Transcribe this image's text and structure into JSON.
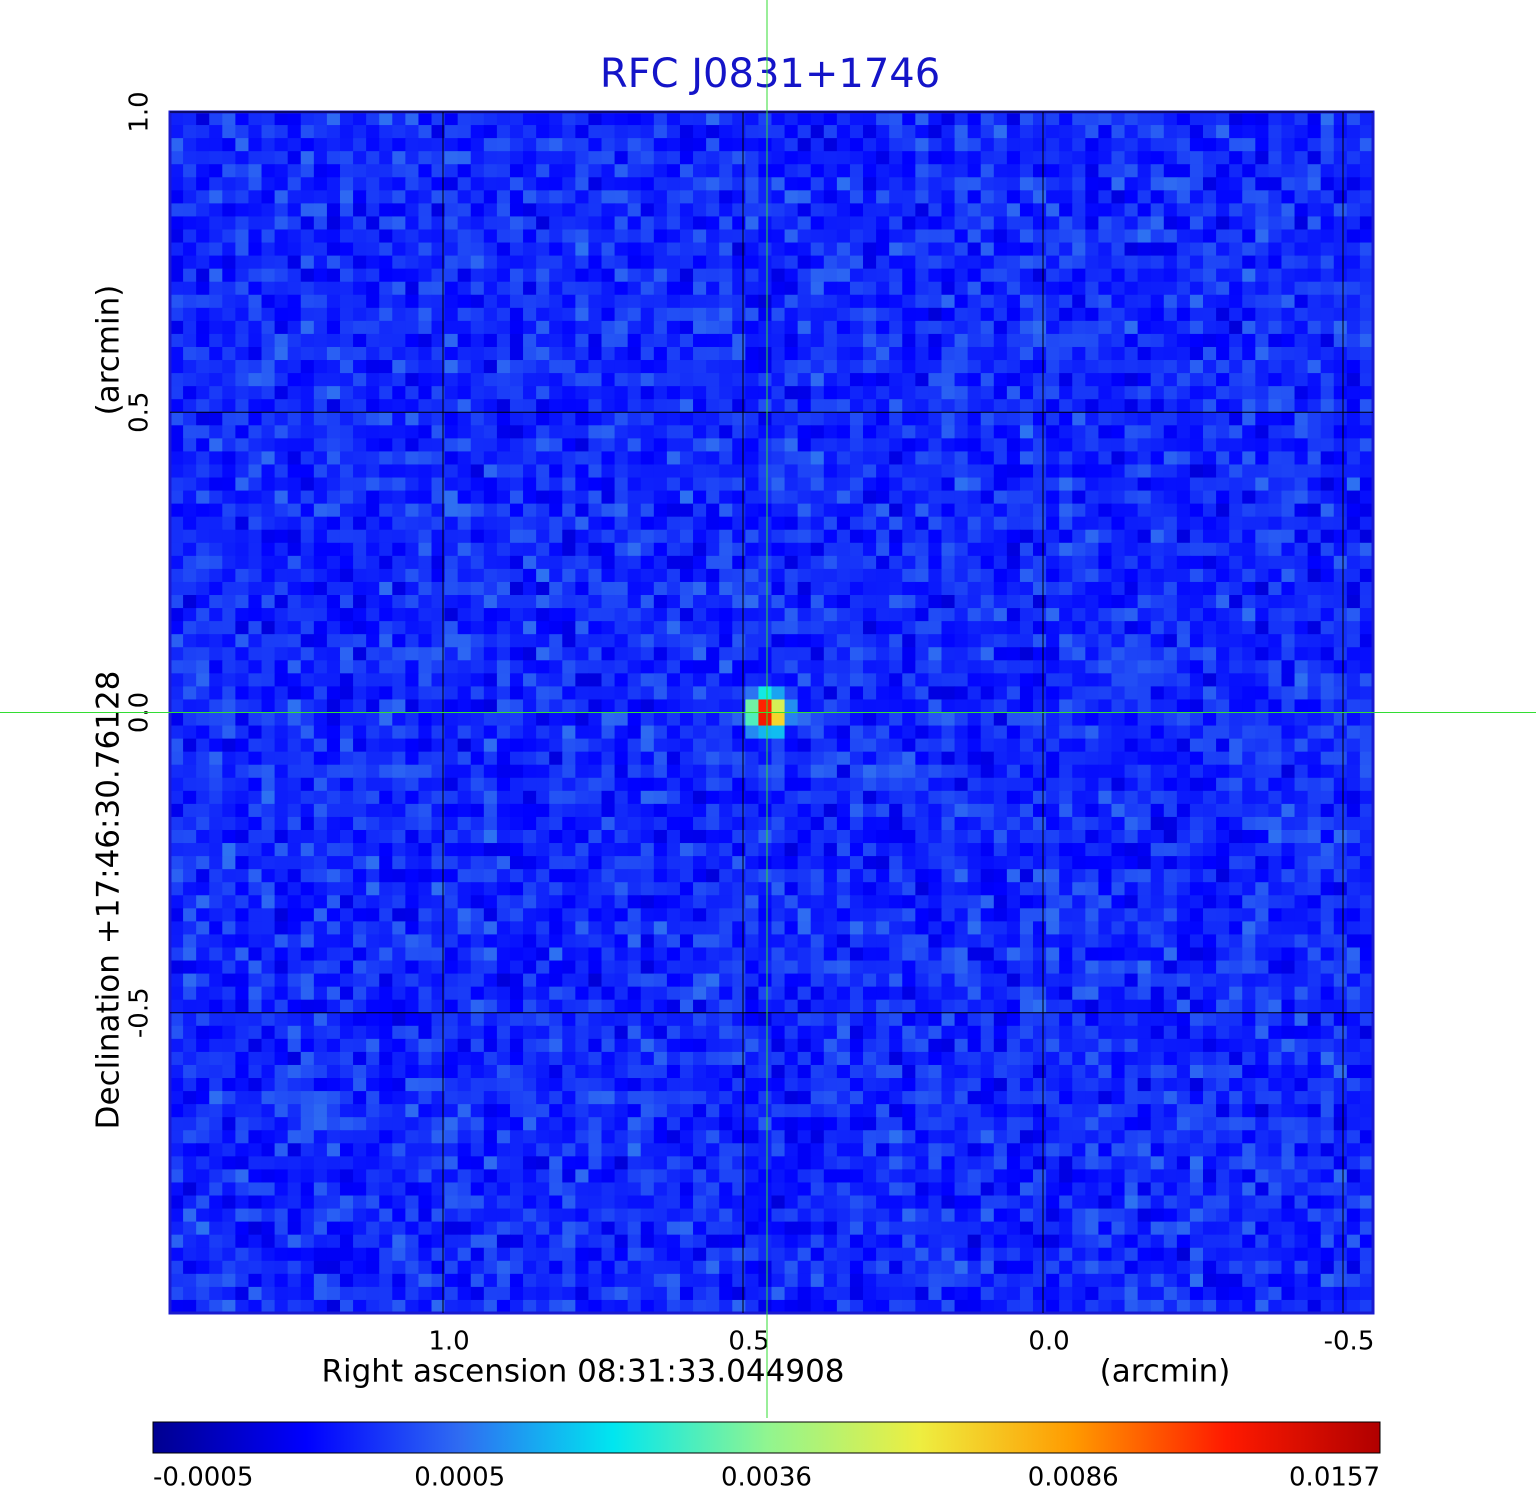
{
  "chart_data": {
    "type": "image",
    "title": "RFC J0831+1746",
    "x_label": "Right ascension  08:31:33.044908",
    "x_unit": "(arcmin)",
    "y_label": "Declination  +17:46:30.76128",
    "y_unit": "(arcmin)",
    "xlim": [
      1.455,
      -0.55
    ],
    "ylim": [
      -1.0,
      1.0
    ],
    "xticks": [
      {
        "value": 1.0,
        "label": "1.0"
      },
      {
        "value": 0.5,
        "label": "0.5"
      },
      {
        "value": 0.0,
        "label": "0.0"
      },
      {
        "value": -0.5,
        "label": "-0.5"
      }
    ],
    "yticks": [
      {
        "value": 1.0,
        "label": "1.0"
      },
      {
        "value": 0.5,
        "label": "0.5"
      },
      {
        "value": 0.0,
        "label": "0.0"
      },
      {
        "value": -0.5,
        "label": "-0.5"
      }
    ],
    "grid": true,
    "crosshair": {
      "x": 0.46,
      "y": 0.0,
      "color": "#33dd33"
    },
    "colorbar": {
      "ticks": [
        {
          "value": -0.0005,
          "label": "-0.0005"
        },
        {
          "value": 0.0005,
          "label": "0.0005"
        },
        {
          "value": 0.0036,
          "label": "0.0036"
        },
        {
          "value": 0.0086,
          "label": "0.0086"
        },
        {
          "value": 0.0157,
          "label": "0.0157"
        }
      ],
      "colors": [
        "#000090",
        "#0000ff",
        "#2f6cf2",
        "#00e6f0",
        "#90f590",
        "#eeee40",
        "#ff9a00",
        "#ff1a00",
        "#b00000"
      ]
    }
  }
}
